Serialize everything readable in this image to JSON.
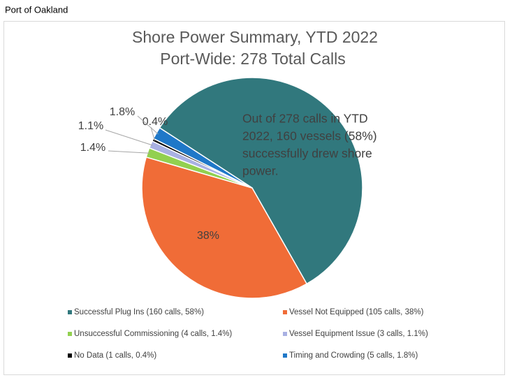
{
  "header": {
    "title": "Port of Oakland"
  },
  "chart_data": {
    "type": "pie",
    "title": [
      "Shore Power Summary, YTD 2022",
      "Port-Wide: 278 Total Calls"
    ],
    "annotation": [
      "Out of 278 calls in YTD",
      "2022, 160 vessels (58%)",
      "successfully drew shore",
      "power."
    ],
    "categories": [
      "Successful Plug Ins (160 calls, 58%)",
      "Vessel Not Equipped (105 calls, 38%)",
      "Unsuccessful Commissioning (4 calls, 1.4%)",
      "Vessel Equipment Issue (3 calls, 1.1%)",
      "No Data (1 calls, 0.4%)",
      "Timing and Crowding (5 calls, 1.8%)"
    ],
    "values": [
      58,
      38,
      1.4,
      1.1,
      0.4,
      1.8
    ],
    "value_labels": [
      null,
      "38%",
      "1.4%",
      "1.1%",
      "0.4%",
      "1.8%"
    ],
    "colors": [
      "#31787d",
      "#f06c37",
      "#92d050",
      "#a9b1e3",
      "#000000",
      "#1f78c8"
    ],
    "legend": "bottom"
  }
}
